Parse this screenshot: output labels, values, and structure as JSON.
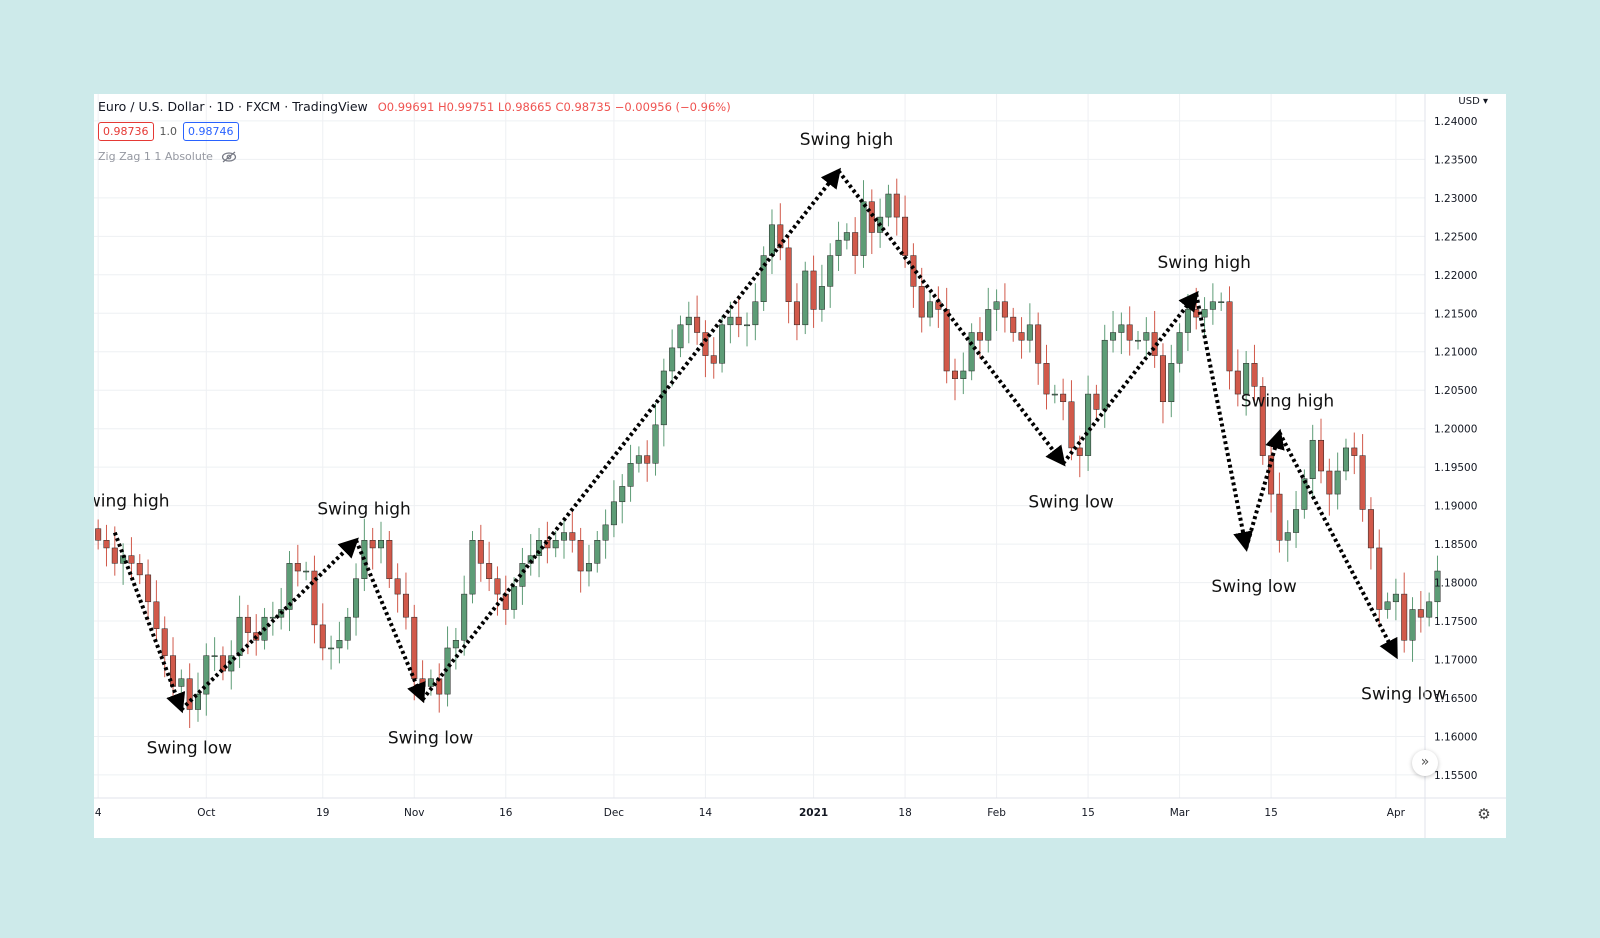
{
  "header": {
    "symbol": "Euro / U.S. Dollar · 1D · FXCM · TradingView",
    "ohlc": "O0.99691  H0.99751  L0.98665  C0.98735  −0.00956 (−0.96%)",
    "sell_price": "0.98736",
    "spread": "1.0",
    "buy_price": "0.98746",
    "indicator_label": "Zig Zag 1 1 Absolute",
    "currency": "USD",
    "currency_caret": "▾"
  },
  "colors": {
    "up": "#5d9c76",
    "down": "#d1594a",
    "grid": "#eef0f3",
    "axis_text": "#131722",
    "background": "#cdeaea"
  },
  "icons": {
    "eye": "eye-crossed-icon",
    "scroll": "double-chevron-right-icon",
    "settings": "gear-icon"
  },
  "chart_data": {
    "type": "candlestick",
    "y_axis": {
      "ticks": [
        1.155,
        1.16,
        1.165,
        1.17,
        1.175,
        1.18,
        1.185,
        1.19,
        1.195,
        1.2,
        1.205,
        1.21,
        1.215,
        1.22,
        1.225,
        1.23,
        1.235,
        1.24
      ],
      "tick_labels": [
        "1.15500",
        "1.16000",
        "1.16500",
        "1.17000",
        "1.17500",
        "1.18000",
        "1.18500",
        "1.19000",
        "1.19500",
        "1.20000",
        "1.20500",
        "1.21000",
        "1.21500",
        "1.22000",
        "1.22500",
        "1.23000",
        "1.23500",
        "1.24000"
      ],
      "range": [
        1.152,
        1.2435
      ]
    },
    "x_axis": {
      "tick_labels": [
        "4",
        "Oct",
        "19",
        "Nov",
        "16",
        "Dec",
        "14",
        "2021",
        "18",
        "Feb",
        "15",
        "Mar",
        "15",
        "Apr"
      ],
      "tick_index": [
        0,
        13,
        27,
        38,
        49,
        62,
        73,
        86,
        97,
        108,
        119,
        130,
        141,
        156
      ],
      "total_bars": 160
    },
    "close": [
      1.1855,
      1.1845,
      1.1825,
      1.1835,
      1.1825,
      1.181,
      1.1775,
      1.174,
      1.1705,
      1.1665,
      1.1675,
      1.1635,
      1.1655,
      1.1705,
      1.1705,
      1.1685,
      1.1705,
      1.1755,
      1.1735,
      1.1725,
      1.1755,
      1.1755,
      1.1765,
      1.1825,
      1.1815,
      1.1815,
      1.1745,
      1.1715,
      1.1715,
      1.1725,
      1.1755,
      1.1805,
      1.1855,
      1.1845,
      1.1855,
      1.1805,
      1.1785,
      1.1755,
      1.1675,
      1.1665,
      1.1675,
      1.1655,
      1.1715,
      1.1725,
      1.1785,
      1.1855,
      1.1825,
      1.1805,
      1.1785,
      1.1765,
      1.1795,
      1.1825,
      1.1835,
      1.1855,
      1.1845,
      1.1855,
      1.1865,
      1.1855,
      1.1815,
      1.1825,
      1.1855,
      1.1875,
      1.1905,
      1.1925,
      1.1955,
      1.1965,
      1.1955,
      1.2005,
      1.2075,
      1.2105,
      1.2135,
      1.2145,
      1.2125,
      1.2095,
      1.2085,
      1.2135,
      1.2145,
      1.2135,
      1.2135,
      1.2165,
      1.2225,
      1.2265,
      1.2235,
      1.2165,
      1.2135,
      1.2205,
      1.2155,
      1.2185,
      1.2225,
      1.2245,
      1.2255,
      1.2225,
      1.2295,
      1.2255,
      1.2275,
      1.2305,
      1.2275,
      1.2225,
      1.2185,
      1.2145,
      1.2165,
      1.2155,
      1.2075,
      1.2065,
      1.2075,
      1.2125,
      1.2115,
      1.2155,
      1.2165,
      1.2145,
      1.2125,
      1.2115,
      1.2135,
      1.2085,
      1.2045,
      1.2045,
      1.2035,
      1.1975,
      1.1965,
      1.2045,
      1.2025,
      1.2115,
      1.2125,
      1.2135,
      1.2115,
      1.2115,
      1.2125,
      1.2095,
      1.2035,
      1.2085,
      1.2125,
      1.2155,
      1.2145,
      1.2155,
      1.2165,
      1.2165,
      1.2075,
      1.2045,
      1.2085,
      1.2055,
      1.1965,
      1.1915,
      1.1855,
      1.1865,
      1.1895,
      1.1935,
      1.1985,
      1.1945,
      1.1915,
      1.1945,
      1.1975,
      1.1965,
      1.1895,
      1.1845,
      1.1765,
      1.1775,
      1.1785,
      1.1725,
      1.1765,
      1.1755,
      1.1775,
      1.1815
    ]
  },
  "annotations": [
    {
      "text": "Swing high",
      "bar": 2,
      "price": 1.1865
    },
    {
      "text": "Swing low",
      "bar": 10,
      "price": 1.1635
    },
    {
      "text": "Swing high",
      "bar": 31,
      "price": 1.1855
    },
    {
      "text": "Swing low",
      "bar": 39,
      "price": 1.1648
    },
    {
      "text": "Swing high",
      "bar": 89,
      "price": 1.2335
    },
    {
      "text": "Swing low",
      "bar": 116,
      "price": 1.1955
    },
    {
      "text": "Swing high",
      "bar": 132,
      "price": 1.2175
    },
    {
      "text": "Swing low",
      "bar": 138,
      "price": 1.1845
    },
    {
      "text": "Swing high",
      "bar": 142,
      "price": 1.1995
    },
    {
      "text": "Swing low",
      "bar": 156,
      "price": 1.1705
    }
  ]
}
